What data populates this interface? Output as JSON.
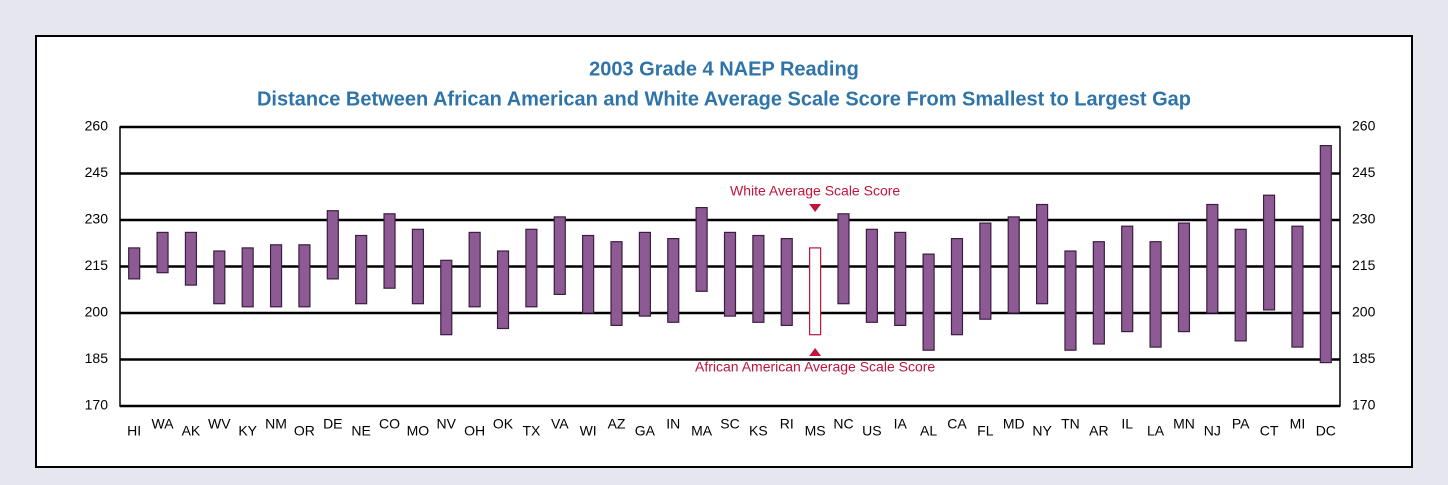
{
  "chart_data": {
    "type": "floating_bar",
    "title": "2003 Grade 4 NAEP Reading",
    "subtitle": "Distance Between African American and White Average Scale Score From Smallest to Largest Gap",
    "categories": [
      "HI",
      "WA",
      "AK",
      "WV",
      "KY",
      "NM",
      "OR",
      "DE",
      "NE",
      "CO",
      "MO",
      "NV",
      "OH",
      "OK",
      "TX",
      "VA",
      "WI",
      "AZ",
      "GA",
      "IN",
      "MA",
      "SC",
      "KS",
      "RI",
      "MS",
      "NC",
      "US",
      "IA",
      "AL",
      "CA",
      "FL",
      "MD",
      "NY",
      "TN",
      "AR",
      "IL",
      "LA",
      "MN",
      "NJ",
      "PA",
      "CT",
      "MI",
      "DC"
    ],
    "series": [
      {
        "name": "African American Average Scale Score",
        "values": [
          211,
          213,
          209,
          203,
          202,
          202,
          202,
          211,
          203,
          208,
          203,
          193,
          202,
          195,
          202,
          206,
          200,
          196,
          199,
          197,
          207,
          199,
          197,
          196,
          193,
          203,
          197,
          196,
          188,
          193,
          198,
          200,
          203,
          188,
          190,
          194,
          189,
          194,
          200,
          191,
          201,
          189,
          184
        ]
      },
      {
        "name": "White Average Scale Score",
        "values": [
          221,
          226,
          226,
          220,
          221,
          222,
          222,
          233,
          225,
          232,
          227,
          217,
          226,
          220,
          227,
          231,
          225,
          223,
          226,
          224,
          234,
          226,
          225,
          224,
          221,
          232,
          227,
          226,
          219,
          224,
          229,
          231,
          235,
          220,
          223,
          228,
          223,
          229,
          235,
          227,
          238,
          228,
          254
        ]
      }
    ],
    "color": "#8e5a94",
    "highlight_category": "MS",
    "ylim": [
      170,
      260
    ],
    "yticks": [
      170,
      185,
      200,
      215,
      230,
      245,
      260
    ],
    "grid": true
  }
}
